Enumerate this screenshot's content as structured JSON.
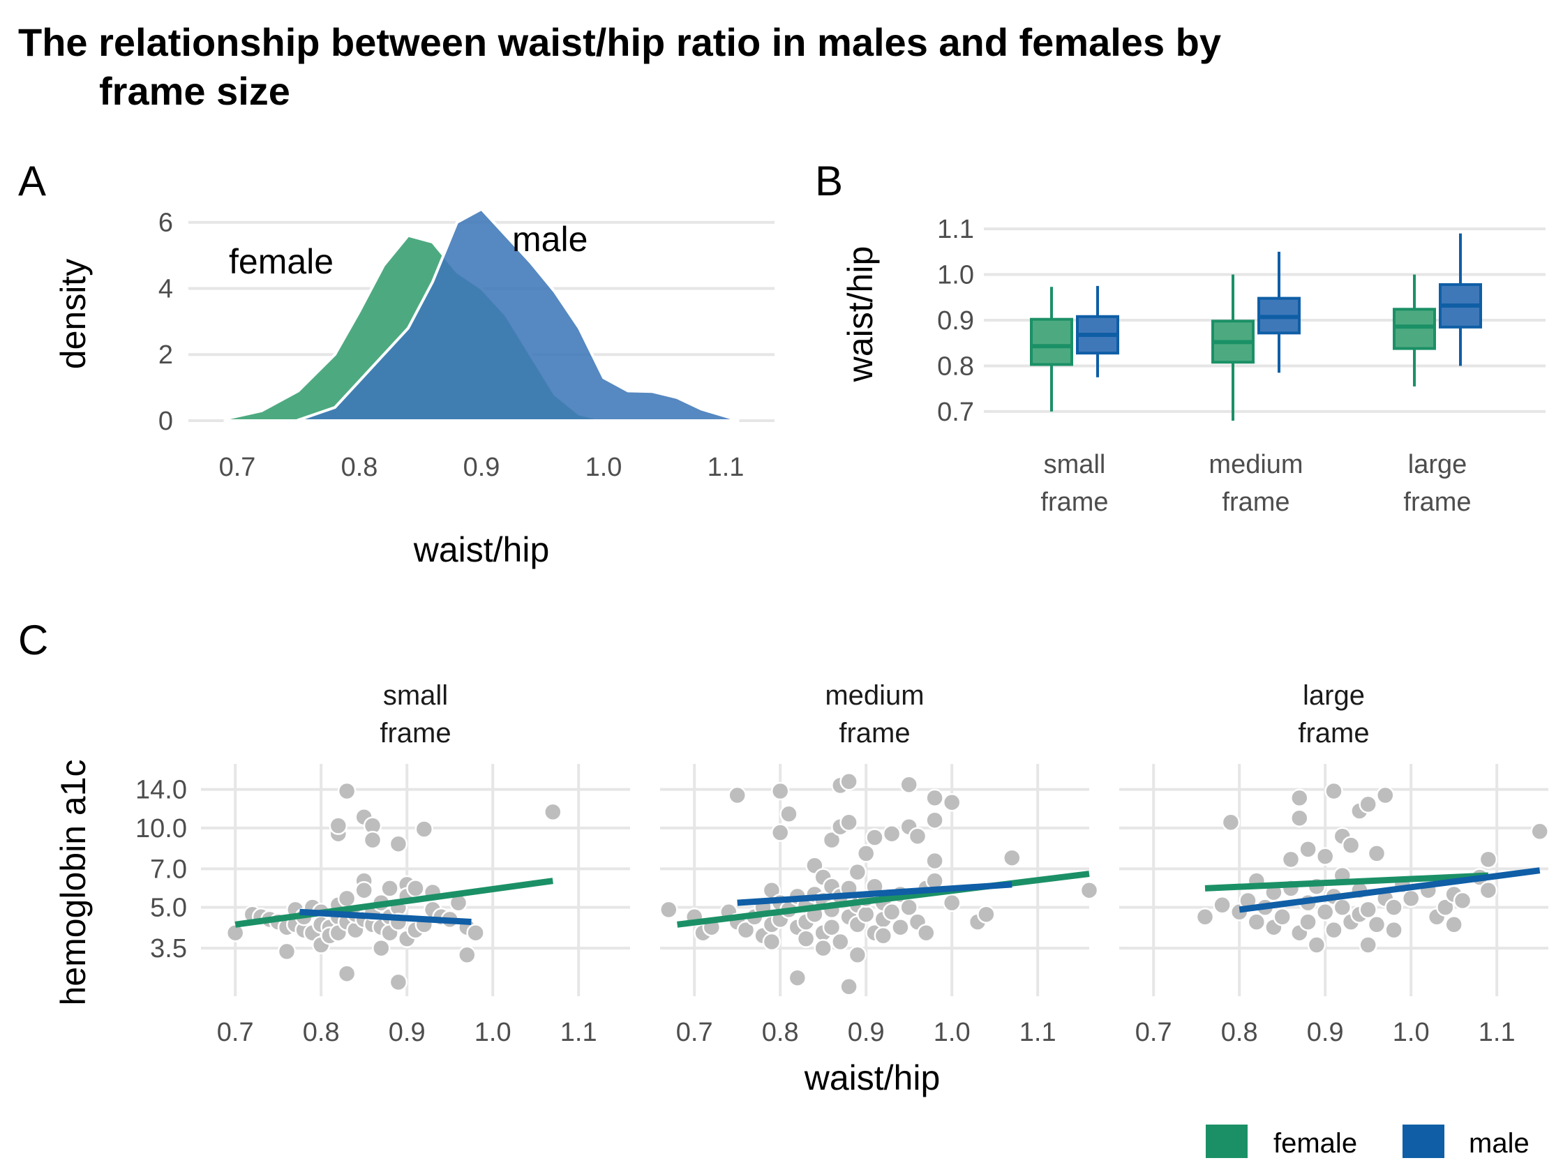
{
  "title_line1": "The relationship between waist/hip ratio in males and females by",
  "title_line2": "frame size",
  "colors": {
    "female": "#1b9066",
    "male": "#0f5ea6",
    "female_fill": "#4daa80",
    "male_fill": "#3f78b8",
    "overlap_fill": "#1f7093",
    "point": "#bdbdbd",
    "grid": "#e6e6e6"
  },
  "legend": {
    "female": "female",
    "male": "male"
  },
  "chart_data": [
    {
      "panel": "A",
      "type": "area",
      "xlabel": "waist/hip",
      "ylabel": "density",
      "xlim": [
        0.66,
        1.14
      ],
      "ylim": [
        0,
        6.5
      ],
      "xticks": [
        "0.7",
        "0.8",
        "0.9",
        "1.0",
        "1.1"
      ],
      "yticks": [
        "0",
        "2",
        "4",
        "6"
      ],
      "series": [
        {
          "name": "female",
          "x": [
            0.69,
            0.72,
            0.75,
            0.78,
            0.8,
            0.82,
            0.84,
            0.86,
            0.88,
            0.9,
            0.92,
            0.94,
            0.96,
            0.98,
            1.0
          ],
          "y": [
            0.05,
            0.3,
            0.9,
            2.0,
            3.3,
            4.7,
            5.6,
            5.4,
            4.5,
            4.0,
            3.2,
            2.0,
            0.8,
            0.2,
            0.02
          ]
        },
        {
          "name": "male",
          "x": [
            0.75,
            0.78,
            0.8,
            0.82,
            0.84,
            0.86,
            0.88,
            0.9,
            0.92,
            0.94,
            0.96,
            0.98,
            1.0,
            1.02,
            1.04,
            1.06,
            1.08,
            1.11
          ],
          "y": [
            0.02,
            0.4,
            1.2,
            2.0,
            2.8,
            4.2,
            6.0,
            6.4,
            5.6,
            4.8,
            3.9,
            2.8,
            1.3,
            0.9,
            0.88,
            0.7,
            0.35,
            0.02
          ]
        }
      ]
    },
    {
      "panel": "B",
      "type": "box",
      "ylabel": "waist/hip",
      "ylim": [
        0.68,
        1.12
      ],
      "yticks": [
        "0.7",
        "0.8",
        "0.9",
        "1.0",
        "1.1"
      ],
      "categories": [
        {
          "line1": "small",
          "line2": "frame"
        },
        {
          "line1": "medium",
          "line2": "frame"
        },
        {
          "line1": "large",
          "line2": "frame"
        }
      ],
      "boxes": [
        {
          "group": 0,
          "sex": "female",
          "min": 0.7,
          "q1": 0.803,
          "median": 0.843,
          "q3": 0.902,
          "max": 0.973
        },
        {
          "group": 0,
          "sex": "male",
          "min": 0.775,
          "q1": 0.828,
          "median": 0.868,
          "q3": 0.908,
          "max": 0.975
        },
        {
          "group": 1,
          "sex": "female",
          "min": 0.68,
          "q1": 0.808,
          "median": 0.852,
          "q3": 0.898,
          "max": 1.0
        },
        {
          "group": 1,
          "sex": "male",
          "min": 0.785,
          "q1": 0.872,
          "median": 0.907,
          "q3": 0.948,
          "max": 1.05
        },
        {
          "group": 2,
          "sex": "female",
          "min": 0.755,
          "q1": 0.838,
          "median": 0.886,
          "q3": 0.924,
          "max": 1.0
        },
        {
          "group": 2,
          "sex": "male",
          "min": 0.8,
          "q1": 0.885,
          "median": 0.932,
          "q3": 0.978,
          "max": 1.09
        }
      ]
    },
    {
      "panel": "C",
      "type": "scatter",
      "xlabel": "waist/hip",
      "ylabel": "hemoglobin a1c",
      "y_scale": "log",
      "xlim": [
        0.66,
        1.16
      ],
      "ylim": [
        2.3,
        17.5
      ],
      "xticks": [
        "0.7",
        "0.8",
        "0.9",
        "1.0",
        "1.1"
      ],
      "yticks": [
        "3.5",
        "5.0",
        "7.0",
        "10.0",
        "14.0"
      ],
      "facets": [
        {
          "line1": "small",
          "line2": "frame",
          "trend": [
            {
              "name": "female",
              "x": [
                0.7,
                1.07
              ],
              "y": [
                4.3,
                6.3
              ]
            },
            {
              "name": "male",
              "x": [
                0.775,
                0.975
              ],
              "y": [
                4.8,
                4.4
              ]
            }
          ],
          "points": [
            [
              0.7,
              4.0
            ],
            [
              0.72,
              4.7
            ],
            [
              0.73,
              4.6
            ],
            [
              0.74,
              4.5
            ],
            [
              0.75,
              4.4
            ],
            [
              0.76,
              4.2
            ],
            [
              0.76,
              3.4
            ],
            [
              0.77,
              4.9
            ],
            [
              0.77,
              4.3
            ],
            [
              0.78,
              4.1
            ],
            [
              0.78,
              4.6
            ],
            [
              0.79,
              5.0
            ],
            [
              0.79,
              4.0
            ],
            [
              0.8,
              4.8
            ],
            [
              0.8,
              3.6
            ],
            [
              0.8,
              4.3
            ],
            [
              0.81,
              4.2
            ],
            [
              0.81,
              3.9
            ],
            [
              0.82,
              4.6
            ],
            [
              0.82,
              4.0
            ],
            [
              0.82,
              5.1
            ],
            [
              0.82,
              9.5
            ],
            [
              0.82,
              10.2
            ],
            [
              0.83,
              13.8
            ],
            [
              0.83,
              4.4
            ],
            [
              0.83,
              2.8
            ],
            [
              0.83,
              5.4
            ],
            [
              0.84,
              4.1
            ],
            [
              0.84,
              4.7
            ],
            [
              0.85,
              6.3
            ],
            [
              0.85,
              5.8
            ],
            [
              0.85,
              11.0
            ],
            [
              0.85,
              4.5
            ],
            [
              0.86,
              4.3
            ],
            [
              0.86,
              10.2
            ],
            [
              0.86,
              9.0
            ],
            [
              0.86,
              4.8
            ],
            [
              0.87,
              5.2
            ],
            [
              0.87,
              4.2
            ],
            [
              0.87,
              3.5
            ],
            [
              0.88,
              5.9
            ],
            [
              0.88,
              4.6
            ],
            [
              0.88,
              4.0
            ],
            [
              0.89,
              8.7
            ],
            [
              0.89,
              5.0
            ],
            [
              0.89,
              2.6
            ],
            [
              0.89,
              4.4
            ],
            [
              0.9,
              6.1
            ],
            [
              0.9,
              3.8
            ],
            [
              0.9,
              5.5
            ],
            [
              0.91,
              4.1
            ],
            [
              0.91,
              5.9
            ],
            [
              0.92,
              9.9
            ],
            [
              0.92,
              4.3
            ],
            [
              0.93,
              5.7
            ],
            [
              0.93,
              4.9
            ],
            [
              0.94,
              4.6
            ],
            [
              0.95,
              4.5
            ],
            [
              0.96,
              5.2
            ],
            [
              0.97,
              4.2
            ],
            [
              0.97,
              3.3
            ],
            [
              0.98,
              4.0
            ],
            [
              1.07,
              11.5
            ]
          ]
        },
        {
          "line1": "medium",
          "line2": "frame",
          "trend": [
            {
              "name": "female",
              "x": [
                0.68,
                1.16
              ],
              "y": [
                4.3,
                6.7
              ]
            },
            {
              "name": "male",
              "x": [
                0.75,
                1.07
              ],
              "y": [
                5.2,
                6.1
              ]
            }
          ],
          "points": [
            [
              0.67,
              4.9
            ],
            [
              0.7,
              4.6
            ],
            [
              0.71,
              4.0
            ],
            [
              0.72,
              4.2
            ],
            [
              0.74,
              4.8
            ],
            [
              0.75,
              13.3
            ],
            [
              0.75,
              4.4
            ],
            [
              0.76,
              4.1
            ],
            [
              0.77,
              4.6
            ],
            [
              0.78,
              3.9
            ],
            [
              0.78,
              5.0
            ],
            [
              0.79,
              5.8
            ],
            [
              0.79,
              4.3
            ],
            [
              0.79,
              3.7
            ],
            [
              0.8,
              4.5
            ],
            [
              0.8,
              5.2
            ],
            [
              0.8,
              9.6
            ],
            [
              0.8,
              13.8
            ],
            [
              0.81,
              11.3
            ],
            [
              0.81,
              4.9
            ],
            [
              0.82,
              4.2
            ],
            [
              0.82,
              5.5
            ],
            [
              0.82,
              2.7
            ],
            [
              0.83,
              3.8
            ],
            [
              0.83,
              5.1
            ],
            [
              0.83,
              4.4
            ],
            [
              0.84,
              7.2
            ],
            [
              0.84,
              5.6
            ],
            [
              0.84,
              4.7
            ],
            [
              0.85,
              6.5
            ],
            [
              0.85,
              4.0
            ],
            [
              0.85,
              5.3
            ],
            [
              0.85,
              3.5
            ],
            [
              0.86,
              4.9
            ],
            [
              0.86,
              6.0
            ],
            [
              0.86,
              9.0
            ],
            [
              0.86,
              4.2
            ],
            [
              0.87,
              14.5
            ],
            [
              0.87,
              10.1
            ],
            [
              0.87,
              5.5
            ],
            [
              0.87,
              3.7
            ],
            [
              0.88,
              4.6
            ],
            [
              0.88,
              15.0
            ],
            [
              0.88,
              5.9
            ],
            [
              0.88,
              10.5
            ],
            [
              0.88,
              2.5
            ],
            [
              0.89,
              4.3
            ],
            [
              0.89,
              5.1
            ],
            [
              0.89,
              6.8
            ],
            [
              0.89,
              3.3
            ],
            [
              0.9,
              4.7
            ],
            [
              0.9,
              8.0
            ],
            [
              0.9,
              5.4
            ],
            [
              0.91,
              9.2
            ],
            [
              0.91,
              4.0
            ],
            [
              0.91,
              6.0
            ],
            [
              0.92,
              4.5
            ],
            [
              0.92,
              5.2
            ],
            [
              0.92,
              3.9
            ],
            [
              0.93,
              9.5
            ],
            [
              0.93,
              4.8
            ],
            [
              0.94,
              5.6
            ],
            [
              0.94,
              4.2
            ],
            [
              0.95,
              10.1
            ],
            [
              0.95,
              14.6
            ],
            [
              0.95,
              5.0
            ],
            [
              0.96,
              4.4
            ],
            [
              0.96,
              9.3
            ],
            [
              0.97,
              5.9
            ],
            [
              0.97,
              4.0
            ],
            [
              0.98,
              10.7
            ],
            [
              0.98,
              7.5
            ],
            [
              0.98,
              13.0
            ],
            [
              0.98,
              6.3
            ],
            [
              1.0,
              12.5
            ],
            [
              1.0,
              5.2
            ],
            [
              1.03,
              4.4
            ],
            [
              1.04,
              4.7
            ],
            [
              1.07,
              7.7
            ],
            [
              1.16,
              5.8
            ]
          ]
        },
        {
          "line1": "large",
          "line2": "frame",
          "trend": [
            {
              "name": "female",
              "x": [
                0.76,
                1.09
              ],
              "y": [
                5.9,
                6.6
              ]
            },
            {
              "name": "male",
              "x": [
                0.8,
                1.15
              ],
              "y": [
                4.9,
                6.9
              ]
            }
          ],
          "points": [
            [
              0.76,
              4.6
            ],
            [
              0.78,
              5.1
            ],
            [
              0.79,
              10.5
            ],
            [
              0.8,
              4.8
            ],
            [
              0.81,
              5.3
            ],
            [
              0.82,
              4.4
            ],
            [
              0.82,
              6.3
            ],
            [
              0.83,
              5.0
            ],
            [
              0.84,
              4.2
            ],
            [
              0.84,
              5.7
            ],
            [
              0.85,
              4.6
            ],
            [
              0.86,
              5.9
            ],
            [
              0.86,
              7.6
            ],
            [
              0.87,
              13.0
            ],
            [
              0.87,
              10.9
            ],
            [
              0.87,
              4.0
            ],
            [
              0.88,
              8.3
            ],
            [
              0.88,
              5.2
            ],
            [
              0.88,
              4.4
            ],
            [
              0.89,
              3.6
            ],
            [
              0.89,
              6.0
            ],
            [
              0.9,
              7.8
            ],
            [
              0.9,
              4.8
            ],
            [
              0.91,
              13.8
            ],
            [
              0.91,
              5.5
            ],
            [
              0.91,
              4.1
            ],
            [
              0.92,
              9.3
            ],
            [
              0.92,
              6.6
            ],
            [
              0.92,
              5.0
            ],
            [
              0.93,
              4.4
            ],
            [
              0.93,
              8.6
            ],
            [
              0.94,
              4.7
            ],
            [
              0.94,
              11.6
            ],
            [
              0.94,
              5.8
            ],
            [
              0.95,
              12.3
            ],
            [
              0.95,
              3.6
            ],
            [
              0.95,
              4.9
            ],
            [
              0.96,
              8.0
            ],
            [
              0.96,
              4.3
            ],
            [
              0.97,
              5.4
            ],
            [
              0.97,
              13.3
            ],
            [
              0.98,
              5.0
            ],
            [
              0.98,
              4.1
            ],
            [
              0.99,
              6.1
            ],
            [
              1.0,
              5.4
            ],
            [
              1.02,
              5.8
            ],
            [
              1.03,
              4.6
            ],
            [
              1.04,
              5.0
            ],
            [
              1.05,
              4.3
            ],
            [
              1.05,
              5.6
            ],
            [
              1.06,
              5.3
            ],
            [
              1.08,
              6.5
            ],
            [
              1.09,
              7.6
            ],
            [
              1.09,
              5.8
            ],
            [
              1.15,
              9.7
            ]
          ]
        }
      ]
    }
  ],
  "panel_tags": {
    "a": "A",
    "b": "B",
    "c": "C"
  },
  "panel_a_labels": {
    "female": "female",
    "male": "male"
  }
}
